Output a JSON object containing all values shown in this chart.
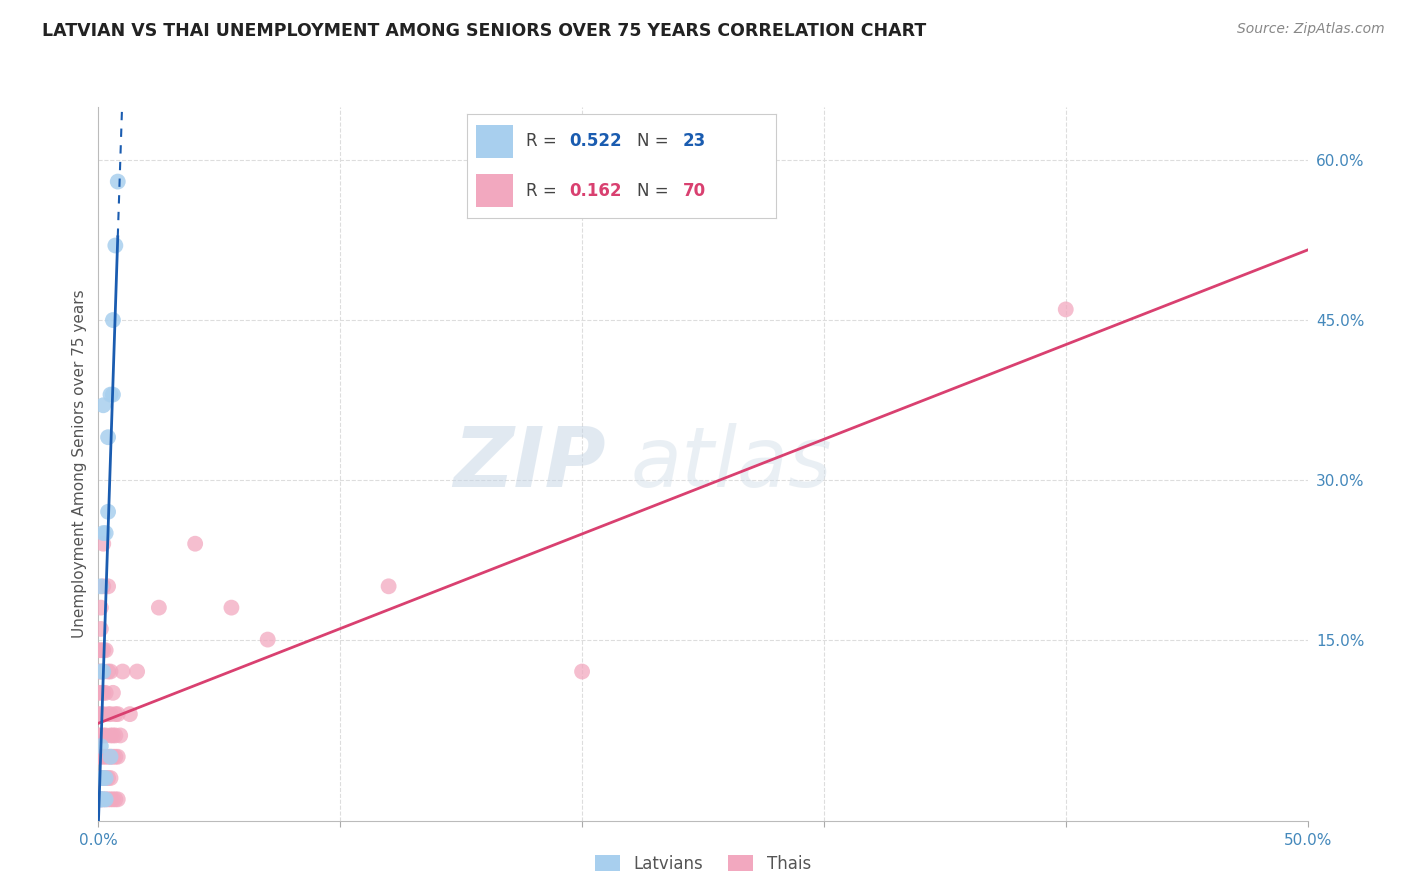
{
  "title": "LATVIAN VS THAI UNEMPLOYMENT AMONG SENIORS OVER 75 YEARS CORRELATION CHART",
  "source": "Source: ZipAtlas.com",
  "ylabel": "Unemployment Among Seniors over 75 years",
  "xlim": [
    0.0,
    0.5
  ],
  "ylim": [
    -0.02,
    0.65
  ],
  "yticks_right": [
    0.15,
    0.3,
    0.45,
    0.6
  ],
  "ytick_labels_right": [
    "15.0%",
    "30.0%",
    "45.0%",
    "60.0%"
  ],
  "latvian_R": 0.522,
  "latvian_N": 23,
  "thai_R": 0.162,
  "thai_N": 70,
  "latvian_color": "#A8CFEE",
  "thai_color": "#F2A8BF",
  "latvian_line_color": "#1A5CB0",
  "thai_line_color": "#D94070",
  "latvian_x": [
    0.001,
    0.001,
    0.001,
    0.001,
    0.001,
    0.001,
    0.001,
    0.002,
    0.002,
    0.002,
    0.002,
    0.002,
    0.003,
    0.003,
    0.003,
    0.004,
    0.004,
    0.005,
    0.005,
    0.006,
    0.006,
    0.007,
    0.008
  ],
  "latvian_y": [
    0.0,
    0.0,
    0.0,
    0.02,
    0.05,
    0.12,
    0.2,
    0.0,
    0.02,
    0.12,
    0.25,
    0.37,
    0.0,
    0.02,
    0.25,
    0.27,
    0.34,
    0.04,
    0.38,
    0.38,
    0.45,
    0.52,
    0.58
  ],
  "thai_x": [
    0.0,
    0.0,
    0.0,
    0.0,
    0.0,
    0.0,
    0.0,
    0.0,
    0.0,
    0.0,
    0.001,
    0.001,
    0.001,
    0.001,
    0.001,
    0.001,
    0.001,
    0.001,
    0.001,
    0.001,
    0.002,
    0.002,
    0.002,
    0.002,
    0.002,
    0.002,
    0.002,
    0.002,
    0.002,
    0.002,
    0.003,
    0.003,
    0.003,
    0.003,
    0.003,
    0.003,
    0.004,
    0.004,
    0.004,
    0.004,
    0.004,
    0.004,
    0.005,
    0.005,
    0.005,
    0.005,
    0.005,
    0.005,
    0.006,
    0.006,
    0.006,
    0.006,
    0.007,
    0.007,
    0.007,
    0.007,
    0.008,
    0.008,
    0.008,
    0.009,
    0.01,
    0.013,
    0.016,
    0.025,
    0.04,
    0.055,
    0.07,
    0.12,
    0.2,
    0.4
  ],
  "thai_y": [
    0.0,
    0.0,
    0.0,
    0.02,
    0.04,
    0.06,
    0.08,
    0.1,
    0.12,
    0.14,
    0.0,
    0.02,
    0.04,
    0.06,
    0.08,
    0.1,
    0.12,
    0.14,
    0.16,
    0.18,
    0.0,
    0.02,
    0.04,
    0.06,
    0.08,
    0.1,
    0.12,
    0.14,
    0.2,
    0.24,
    0.0,
    0.02,
    0.04,
    0.06,
    0.1,
    0.14,
    0.0,
    0.02,
    0.04,
    0.08,
    0.12,
    0.2,
    0.0,
    0.02,
    0.04,
    0.06,
    0.08,
    0.12,
    0.0,
    0.04,
    0.06,
    0.1,
    0.0,
    0.04,
    0.06,
    0.08,
    0.0,
    0.04,
    0.08,
    0.06,
    0.12,
    0.08,
    0.12,
    0.18,
    0.24,
    0.18,
    0.15,
    0.2,
    0.12,
    0.46
  ],
  "background_color": "#FFFFFF",
  "grid_color": "#DDDDDD",
  "latvian_label": "Latvians",
  "thai_label": "Thais"
}
